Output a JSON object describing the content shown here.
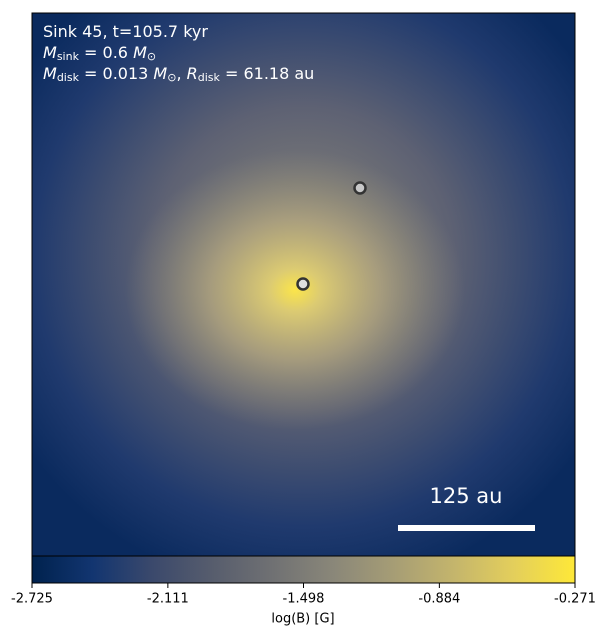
{
  "chart_data": {
    "type": "image",
    "annotations": [
      [
        {
          "t": "Sink 45, t=105.7 kyr"
        }
      ],
      [
        {
          "t": "M",
          "it": true
        },
        {
          "t": "sink",
          "sub": true
        },
        {
          "t": " = 0.6 "
        },
        {
          "t": "M",
          "it": true
        },
        {
          "t": "⊙",
          "sub": true
        }
      ],
      [
        {
          "t": "M",
          "it": true
        },
        {
          "t": "disk",
          "sub": true
        },
        {
          "t": " = 0.013 "
        },
        {
          "t": "M",
          "it": true
        },
        {
          "t": "⊙",
          "sub": true
        },
        {
          "t": ", "
        },
        {
          "t": "R",
          "it": true
        },
        {
          "t": "disk",
          "sub": true
        },
        {
          "t": " = 61.18 au"
        }
      ]
    ],
    "scale_bar_label": "125 au",
    "colorbar": {
      "label": "log(B) [G]",
      "lim": [
        -2.725,
        -0.271
      ],
      "ticks": [
        -2.725,
        -2.111,
        -1.498,
        -0.884,
        -0.271
      ],
      "colors": [
        "#00224e",
        "#123570",
        "#3b496c",
        "#575d6d",
        "#707173",
        "#8a8779",
        "#a69d75",
        "#c4b56c",
        "#e4cf5b",
        "#fee838"
      ]
    }
  }
}
